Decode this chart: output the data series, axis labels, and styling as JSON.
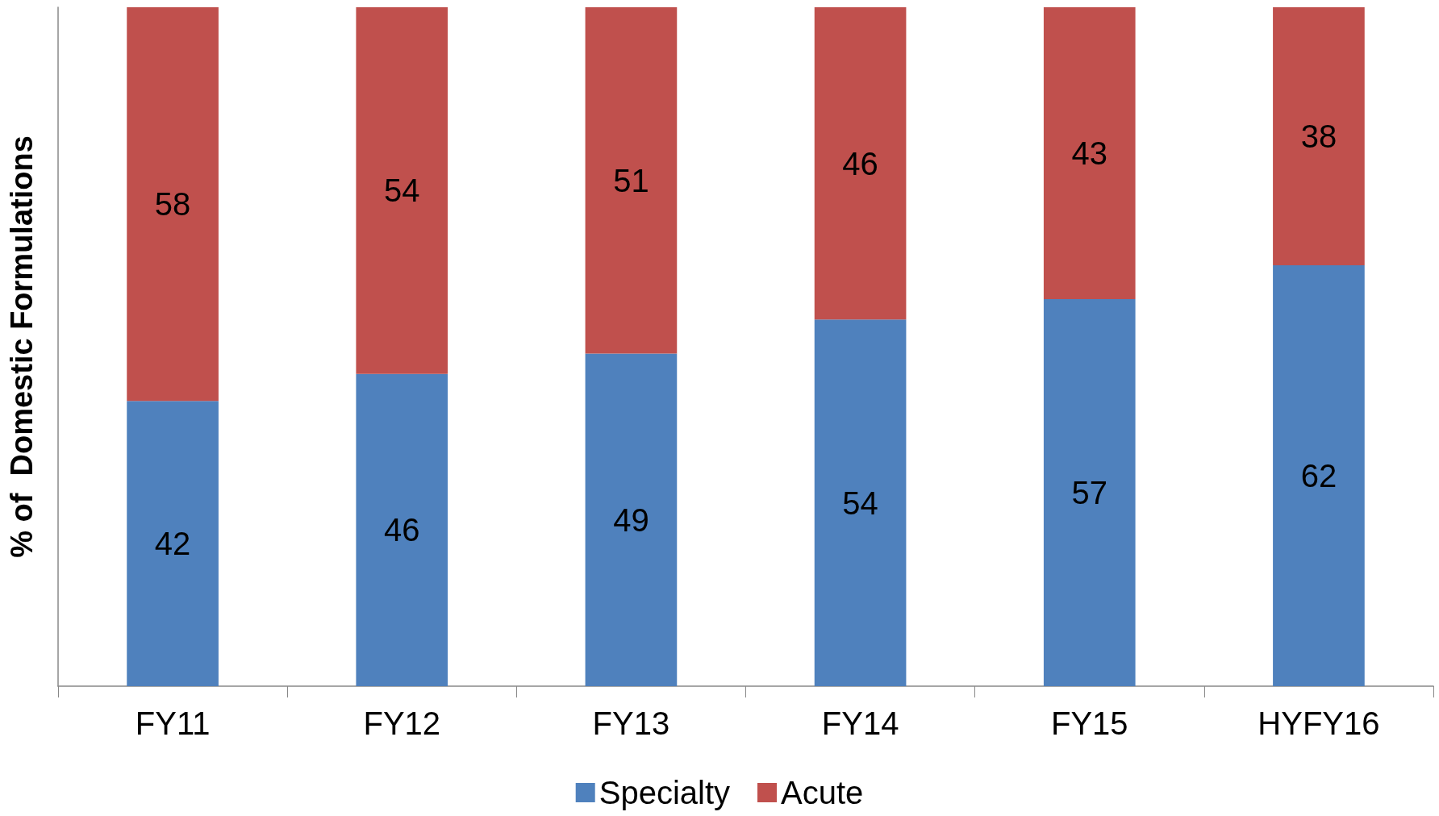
{
  "chart_data": {
    "type": "bar",
    "stacked": true,
    "ylabel": "% of  Domestic Formulations",
    "categories": [
      "FY11",
      "FY12",
      "FY13",
      "FY14",
      "FY15",
      "HYFY16"
    ],
    "series": [
      {
        "name": "Specialty",
        "color": "#4f81bd",
        "values": [
          42,
          46,
          49,
          54,
          57,
          62
        ]
      },
      {
        "name": "Acute",
        "color": "#c0504d",
        "values": [
          58,
          54,
          51,
          46,
          43,
          38
        ]
      }
    ],
    "data_labels": true,
    "legend": "bottom",
    "grid": false,
    "tick_labels": "x"
  }
}
